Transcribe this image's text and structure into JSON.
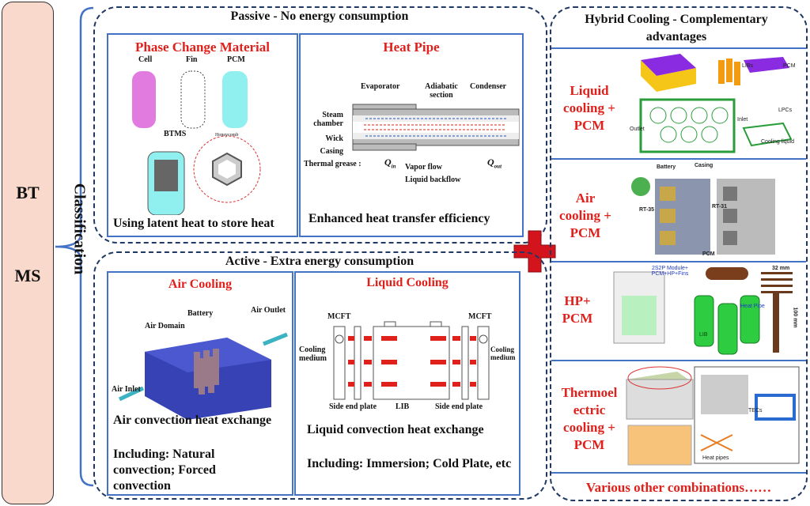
{
  "root": {
    "line1": "BT",
    "line2": "MS"
  },
  "classification": "Classification",
  "passive": {
    "title": "Passive - No energy consumption",
    "pcm": {
      "title": "Phase Change Material",
      "labels": [
        "Cell",
        "Fin",
        "PCM"
      ],
      "btms": "BTMS",
      "honeycomb": "Honeycomb",
      "caption": "Using latent heat to store heat"
    },
    "heat_pipe": {
      "title": "Heat Pipe",
      "evaporator": "Evaporator",
      "adiabatic": "Adiabatic section",
      "condenser": "Condenser",
      "steam": "Steam chamber",
      "wick": "Wick",
      "casing": "Casing",
      "grease": "Thermal grease :",
      "q_in": "Q",
      "q_in_sub": "in",
      "q_out": "Q",
      "q_out_sub": "out",
      "vapor": "Vapor flow",
      "liquid": "Liquid backflow",
      "caption": "Enhanced heat transfer efficiency"
    }
  },
  "active": {
    "title": "Active - Extra energy consumption",
    "air": {
      "title": "Air Cooling",
      "battery": "Battery",
      "domain": "Air Domain",
      "outlet": "Air Outlet",
      "inlet": "Air Inlet",
      "caption": "Air convection heat exchange",
      "including": "Including: Natural convection; Forced convection"
    },
    "liquid": {
      "title": "Liquid Cooling",
      "mcft": "MCFT",
      "cooling": "Cooling medium",
      "side": "Side end plate",
      "lib": "LIB",
      "caption": "Liquid convection heat exchange",
      "including": "Including: Immersion; Cold Plate, etc"
    }
  },
  "hybrid": {
    "title": "Hybrid Cooling - Complementary advantages",
    "rows": [
      {
        "label": "Liquid cooling + PCM",
        "fig": [
          "LIBs",
          "PCM",
          "LPCs",
          "Cooling liquid",
          "Outlet",
          "Inlet"
        ]
      },
      {
        "label": "Air cooling + PCM",
        "fig": [
          "Battery",
          "Casing",
          "RT-35",
          "RT-31",
          "PCM"
        ]
      },
      {
        "label": "HP+ PCM",
        "fig": [
          "2S2P Module+ PCM+HP+Fins",
          "Heat Pipe",
          "LIB",
          "32 mm",
          "100 mm"
        ]
      },
      {
        "label": "Thermoel ectric cooling + PCM",
        "fig": [
          "Heat pipes",
          "TECs"
        ]
      }
    ],
    "footer": "Various other combinations……"
  },
  "colors": {
    "accent_red": "#e0201b",
    "frame_blue": "#4472c4",
    "root_fill": "#f8d9cc"
  }
}
